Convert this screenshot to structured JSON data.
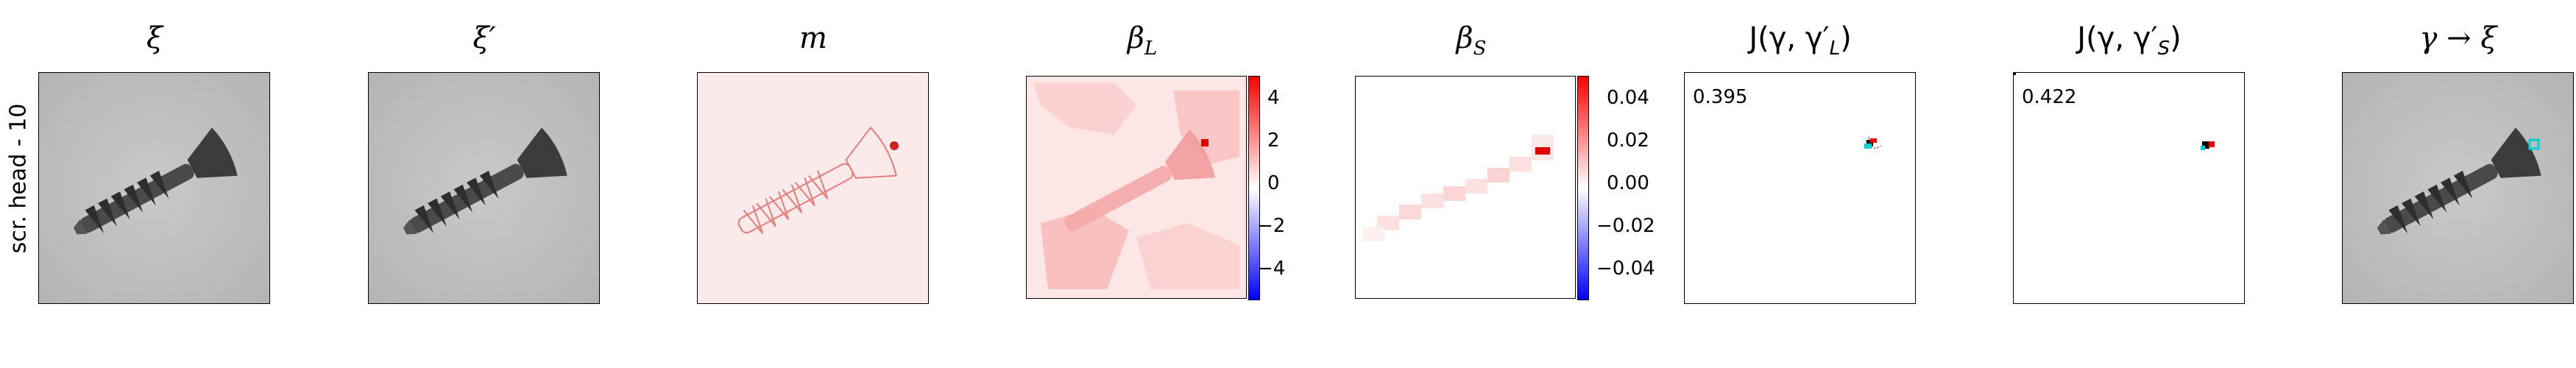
{
  "row_label": "scr. head - 10",
  "panels": [
    {
      "id": "xi",
      "title": "ξ"
    },
    {
      "id": "xi-prime",
      "title": "ξ′"
    },
    {
      "id": "m",
      "title": "m"
    },
    {
      "id": "beta-l",
      "title": "β",
      "title_sub": "L"
    },
    {
      "id": "beta-s",
      "title": "β",
      "title_sub": "S"
    },
    {
      "id": "j-gamma-l",
      "title": "J(γ, γ′",
      "title_sub": "L",
      "title_end": ")"
    },
    {
      "id": "j-gamma-s",
      "title": "J(γ, γ′",
      "title_sub": "S",
      "title_end": ")"
    },
    {
      "id": "gamma-xi",
      "title": "γ → ξ"
    }
  ],
  "scores": {
    "j_gamma_l": "0.395",
    "j_gamma_s": "0.422"
  },
  "colorbar_l": {
    "ticks": [
      "4",
      "2",
      "0",
      "−2",
      "−4"
    ]
  },
  "colorbar_s": {
    "ticks": [
      "0.04",
      "0.02",
      "0.00",
      "−0.02",
      "−0.04"
    ]
  },
  "colors": {
    "pos": "#ff0000",
    "neg": "#0000ff",
    "cyan": "#00d0d8"
  }
}
